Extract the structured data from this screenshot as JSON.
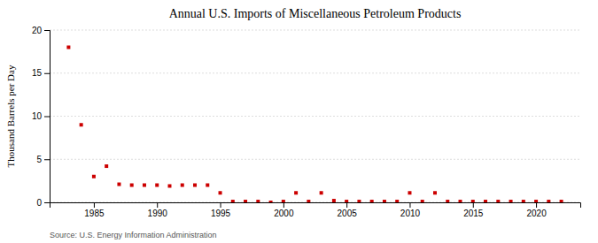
{
  "chart_data": {
    "type": "scatter",
    "title": "Annual U.S. Imports of Miscellaneous Petroleum Products",
    "ylabel": "Thousand Barrels per Day",
    "source": "Source: U.S. Energy Information Administration",
    "color": "#cc0000",
    "marker": "square",
    "grid": "y",
    "xlim": [
      1981.5,
      2023.5
    ],
    "ylim": [
      0,
      20
    ],
    "xticks": [
      1985,
      1990,
      1995,
      2000,
      2005,
      2010,
      2015,
      2020
    ],
    "yticks": [
      0,
      5,
      10,
      15,
      20
    ],
    "x": [
      1983,
      1984,
      1985,
      1986,
      1987,
      1988,
      1989,
      1990,
      1991,
      1992,
      1993,
      1994,
      1995,
      1996,
      1997,
      1998,
      1999,
      2000,
      2001,
      2002,
      2003,
      2004,
      2005,
      2006,
      2007,
      2008,
      2009,
      2010,
      2011,
      2012,
      2013,
      2014,
      2015,
      2016,
      2017,
      2018,
      2019,
      2020,
      2021,
      2022
    ],
    "values": [
      18.0,
      9.0,
      3.0,
      4.2,
      2.1,
      2.0,
      2.0,
      2.0,
      1.9,
      2.0,
      2.0,
      2.0,
      1.1,
      0.1,
      0.1,
      0.1,
      0.0,
      0.1,
      1.1,
      0.1,
      1.1,
      0.2,
      0.1,
      0.1,
      0.1,
      0.1,
      0.1,
      1.1,
      0.1,
      1.1,
      0.1,
      0.1,
      0.1,
      0.1,
      0.1,
      0.1,
      0.1,
      0.1,
      0.1,
      0.1
    ]
  }
}
